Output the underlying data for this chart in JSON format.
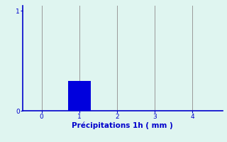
{
  "bar_x": [
    1
  ],
  "bar_height": [
    0.3
  ],
  "bar_width": 0.6,
  "bar_color": "#0000dd",
  "xlim": [
    -0.5,
    4.8
  ],
  "ylim": [
    0,
    1.05
  ],
  "xticks": [
    0,
    1,
    2,
    3,
    4
  ],
  "yticks": [
    0,
    1
  ],
  "xlabel": "Précipitations 1h ( mm )",
  "xlabel_color": "#0000cc",
  "xlabel_fontsize": 7.5,
  "tick_color": "#0000cc",
  "tick_fontsize": 6.5,
  "axis_color": "#0000cc",
  "grid_color": "#999999",
  "background_color": "#dff5f0",
  "figure_bg": "#dff5f0",
  "ytick_labels": [
    "0",
    "1"
  ]
}
